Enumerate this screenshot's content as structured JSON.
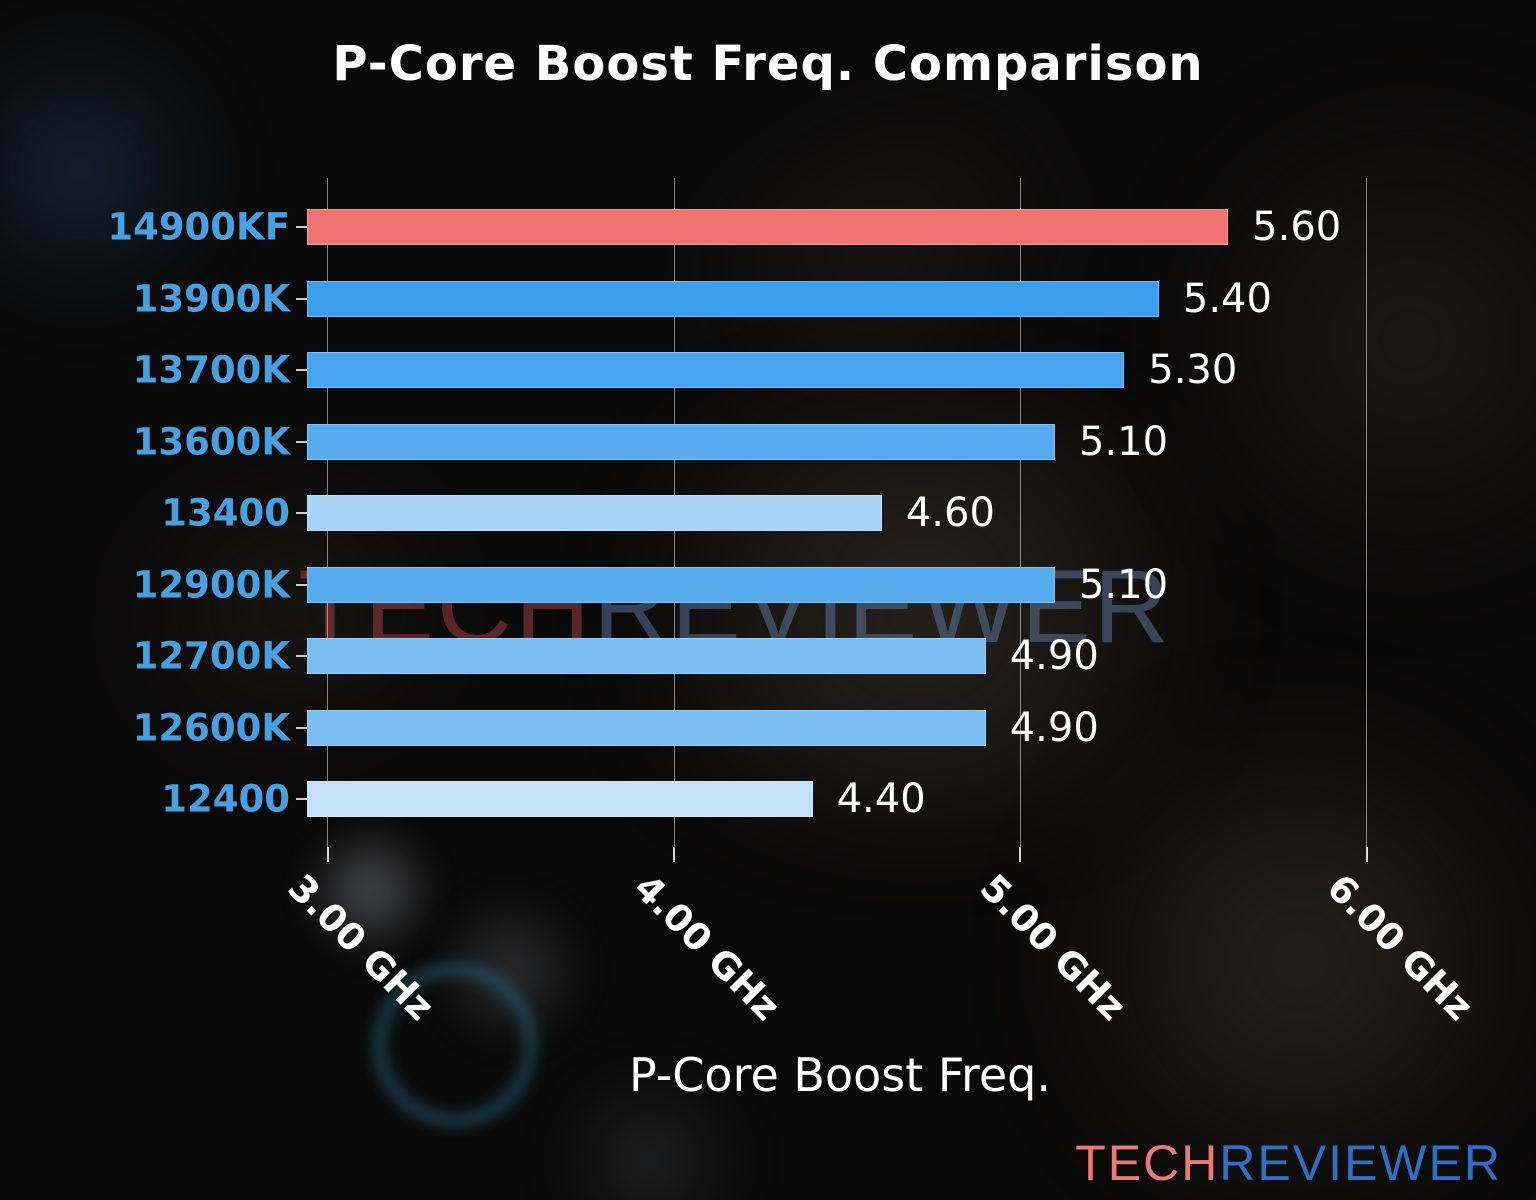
{
  "title": "P-Core Boost Freq. Comparison",
  "xlabel": "P-Core Boost Freq.",
  "watermark": {
    "part1": "TECH",
    "part2": "REVIEWER"
  },
  "logo": {
    "part1": "TECH",
    "part2": "REVIEWER"
  },
  "chart_data": {
    "type": "bar",
    "orientation": "horizontal",
    "title": "P-Core Boost Freq. Comparison",
    "xlabel": "P-Core Boost Freq.",
    "categories": [
      "14900KF",
      "13900K",
      "13700K",
      "13600K",
      "13400",
      "12900K",
      "12700K",
      "12600K",
      "12400"
    ],
    "values": [
      5.6,
      5.4,
      5.3,
      5.1,
      4.6,
      5.1,
      4.9,
      4.9,
      4.4
    ],
    "value_labels": [
      "5.60",
      "5.40",
      "5.30",
      "5.10",
      "4.60",
      "5.10",
      "4.90",
      "4.90",
      "4.40"
    ],
    "bar_colors": [
      "#f07373",
      "#3b9ff0",
      "#47a5f0",
      "#57abee",
      "#a8d2f4",
      "#57abee",
      "#7abdf2",
      "#7abdf2",
      "#c3e0f8"
    ],
    "highlight_bar": "14900KF",
    "highlight_color": "#f07373",
    "category_label_color": "#48a0e0",
    "text_color": "#ffffff",
    "xlim": [
      2.94,
      6.36
    ],
    "x_ticks": [
      3,
      4,
      5,
      6
    ],
    "x_tick_labels": [
      "3.00 GHz",
      "4.00 GHz",
      "5.00 GHz",
      "6.00 GHz"
    ],
    "grid": "vertical",
    "legend": "none"
  }
}
